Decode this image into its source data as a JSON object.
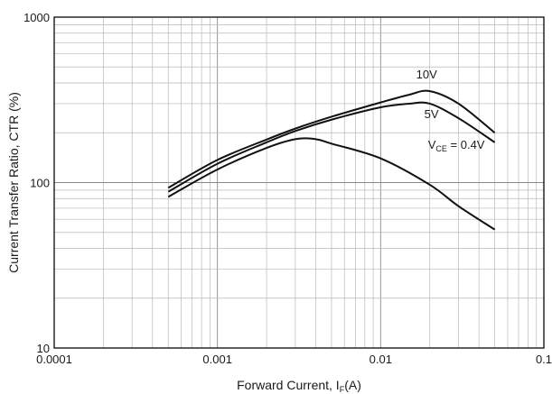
{
  "chart_data": {
    "type": "line",
    "x_scale": "log",
    "y_scale": "log",
    "xlim": [
      0.0001,
      0.1
    ],
    "ylim": [
      10,
      1000
    ],
    "grid": true,
    "xlabel": {
      "main": "Forward Current, I",
      "sub": "F",
      "tail": "(A)"
    },
    "ylabel": "Current Transfer Ratio, CTR (%)",
    "x_ticks": [
      {
        "value": 0.0001,
        "label": "0.0001"
      },
      {
        "value": 0.001,
        "label": "0.001"
      },
      {
        "value": 0.01,
        "label": "0.01"
      },
      {
        "value": 0.1,
        "label": "0.1"
      }
    ],
    "y_ticks": [
      {
        "value": 10,
        "label": "10"
      },
      {
        "value": 100,
        "label": "100"
      },
      {
        "value": 1000,
        "label": "1000"
      }
    ],
    "series": [
      {
        "name": "10V",
        "label_parts": {
          "main": "10V"
        },
        "label_at": {
          "x": 0.0165,
          "y": 425
        },
        "points": [
          [
            0.0005,
            93
          ],
          [
            0.001,
            137
          ],
          [
            0.002,
            182
          ],
          [
            0.003,
            212
          ],
          [
            0.005,
            250
          ],
          [
            0.01,
            305
          ],
          [
            0.015,
            340
          ],
          [
            0.02,
            357
          ],
          [
            0.03,
            300
          ],
          [
            0.05,
            200
          ]
        ]
      },
      {
        "name": "5V",
        "label_parts": {
          "main": "5V"
        },
        "label_at": {
          "x": 0.0185,
          "y": 245
        },
        "points": [
          [
            0.0005,
            88
          ],
          [
            0.001,
            130
          ],
          [
            0.002,
            175
          ],
          [
            0.003,
            205
          ],
          [
            0.005,
            240
          ],
          [
            0.01,
            285
          ],
          [
            0.015,
            300
          ],
          [
            0.02,
            300
          ],
          [
            0.03,
            245
          ],
          [
            0.05,
            175
          ]
        ]
      },
      {
        "name": "VCE = 0.4V",
        "label_parts": {
          "main": "V",
          "sub": "CE",
          "tail": " = 0.4V"
        },
        "label_at": {
          "x": 0.0195,
          "y": 160
        },
        "points": [
          [
            0.0005,
            82
          ],
          [
            0.001,
            120
          ],
          [
            0.002,
            162
          ],
          [
            0.003,
            183
          ],
          [
            0.004,
            183
          ],
          [
            0.005,
            172
          ],
          [
            0.01,
            140
          ],
          [
            0.02,
            97
          ],
          [
            0.03,
            72
          ],
          [
            0.05,
            52
          ]
        ]
      }
    ]
  }
}
